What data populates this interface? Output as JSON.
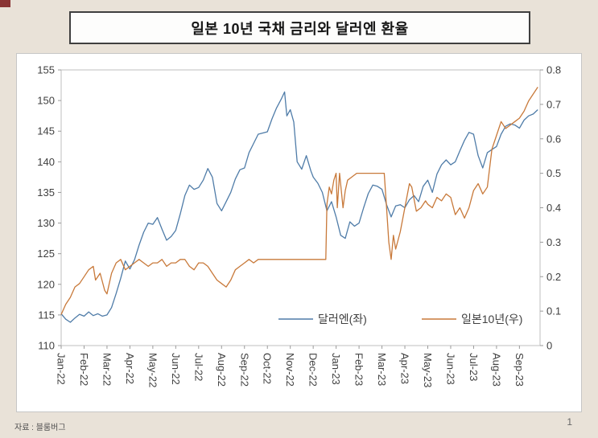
{
  "page": {
    "background_color": "#e9e2d8",
    "corner_mark_color": "#8a3434",
    "source": "자료 : 블룸버그",
    "page_number": "1"
  },
  "title": "일본 10년 국채 금리와 달러엔 환율",
  "chart_data": {
    "type": "line",
    "title": "일본 10년 국채 금리와 달러엔 환율",
    "grid": false,
    "legend_position": "inside-bottom-center",
    "x_unit": "month-index (0 = Jan-22)",
    "x_range": [
      0,
      20.9
    ],
    "x_tick_labels": [
      "Jan-22",
      "Feb-22",
      "Mar-22",
      "Apr-22",
      "May-22",
      "Jun-22",
      "Jul-22",
      "Aug-22",
      "Sep-22",
      "Oct-22",
      "Nov-22",
      "Dec-22",
      "Jan-23",
      "Feb-23",
      "Mar-23",
      "Apr-23",
      "May-23",
      "Jun-23",
      "Jul-23",
      "Aug-23",
      "Sep-23"
    ],
    "left_axis": {
      "min": 110,
      "max": 155,
      "tick_labels": [
        "110",
        "115",
        "120",
        "125",
        "130",
        "135",
        "140",
        "145",
        "150",
        "155"
      ]
    },
    "right_axis": {
      "min": 0,
      "max": 0.8,
      "tick_labels": [
        "0",
        "0.1",
        "0.2",
        "0.3",
        "0.4",
        "0.5",
        "0.6",
        "0.7",
        "0.8"
      ]
    },
    "series": [
      {
        "id": "usdjpy",
        "name": "달러엔(좌)",
        "axis": "left",
        "color": "#4f7ca8",
        "x": [
          0,
          0.2,
          0.4,
          0.6,
          0.8,
          1.0,
          1.2,
          1.4,
          1.6,
          1.8,
          2.0,
          2.2,
          2.4,
          2.6,
          2.8,
          3.0,
          3.2,
          3.4,
          3.6,
          3.8,
          4.0,
          4.2,
          4.4,
          4.6,
          4.8,
          5.0,
          5.2,
          5.4,
          5.6,
          5.8,
          6.0,
          6.2,
          6.4,
          6.6,
          6.8,
          7.0,
          7.2,
          7.4,
          7.6,
          7.8,
          8.0,
          8.2,
          8.4,
          8.6,
          8.8,
          9.0,
          9.2,
          9.4,
          9.6,
          9.75,
          9.85,
          10.0,
          10.15,
          10.3,
          10.5,
          10.7,
          10.9,
          11.0,
          11.2,
          11.4,
          11.6,
          11.8,
          12.0,
          12.2,
          12.4,
          12.6,
          12.8,
          13.0,
          13.2,
          13.4,
          13.6,
          13.8,
          14.0,
          14.2,
          14.4,
          14.6,
          14.8,
          15.0,
          15.2,
          15.4,
          15.6,
          15.8,
          16.0,
          16.2,
          16.4,
          16.6,
          16.8,
          17.0,
          17.2,
          17.4,
          17.6,
          17.8,
          18.0,
          18.2,
          18.4,
          18.6,
          18.8,
          19.0,
          19.2,
          19.4,
          19.6,
          19.8,
          20.0,
          20.2,
          20.4,
          20.6,
          20.8
        ],
        "y": [
          115.2,
          114.3,
          113.8,
          114.5,
          115.1,
          114.8,
          115.5,
          114.9,
          115.2,
          114.8,
          115.0,
          116.2,
          118.5,
          121.0,
          123.8,
          122.5,
          124.0,
          126.4,
          128.5,
          130.0,
          129.8,
          130.9,
          129.0,
          127.2,
          127.8,
          128.8,
          131.5,
          134.5,
          136.2,
          135.5,
          135.8,
          137.0,
          138.9,
          137.5,
          133.2,
          132.0,
          133.5,
          135.0,
          137.2,
          138.7,
          139.0,
          141.5,
          143.0,
          144.5,
          144.7,
          144.9,
          147.0,
          148.8,
          150.2,
          151.4,
          147.5,
          148.5,
          146.5,
          140.0,
          138.8,
          141.0,
          138.5,
          137.5,
          136.5,
          135.0,
          132.0,
          133.5,
          131.0,
          128.0,
          127.5,
          130.2,
          129.5,
          130.0,
          132.5,
          134.8,
          136.2,
          136.0,
          135.5,
          133.0,
          131.0,
          132.8,
          133.0,
          132.5,
          133.8,
          134.5,
          133.5,
          136.0,
          137.0,
          135.0,
          138.0,
          139.5,
          140.3,
          139.5,
          140.0,
          141.8,
          143.5,
          144.8,
          144.5,
          141.0,
          139.0,
          141.5,
          142.0,
          142.5,
          144.5,
          145.8,
          146.2,
          146.0,
          145.5,
          146.8,
          147.5,
          147.8,
          148.5
        ]
      },
      {
        "id": "jgb10y",
        "name": "일본10년(우)",
        "axis": "right",
        "color": "#c8793a",
        "x": [
          0,
          0.2,
          0.4,
          0.6,
          0.8,
          1.0,
          1.2,
          1.4,
          1.5,
          1.7,
          1.9,
          2.0,
          2.2,
          2.4,
          2.6,
          2.8,
          3.0,
          3.2,
          3.4,
          3.6,
          3.8,
          4.0,
          4.2,
          4.4,
          4.6,
          4.8,
          5.0,
          5.2,
          5.4,
          5.6,
          5.8,
          6.0,
          6.2,
          6.4,
          6.6,
          6.8,
          7.0,
          7.2,
          7.4,
          7.6,
          7.8,
          8.0,
          8.2,
          8.4,
          8.6,
          8.8,
          9.0,
          9.2,
          9.4,
          9.6,
          9.8,
          10.0,
          10.2,
          10.4,
          10.6,
          10.8,
          11.0,
          11.2,
          11.4,
          11.55,
          11.6,
          11.7,
          11.8,
          11.9,
          12.0,
          12.05,
          12.15,
          12.3,
          12.4,
          12.5,
          12.7,
          12.9,
          13.0,
          13.2,
          13.4,
          13.6,
          13.8,
          14.0,
          14.1,
          14.2,
          14.3,
          14.4,
          14.5,
          14.6,
          14.8,
          15.0,
          15.2,
          15.3,
          15.5,
          15.7,
          15.9,
          16.0,
          16.2,
          16.4,
          16.6,
          16.8,
          17.0,
          17.2,
          17.4,
          17.6,
          17.8,
          18.0,
          18.2,
          18.4,
          18.6,
          18.8,
          19.0,
          19.2,
          19.4,
          19.6,
          19.8,
          20.0,
          20.2,
          20.4,
          20.6,
          20.8
        ],
        "y": [
          0.09,
          0.12,
          0.14,
          0.17,
          0.18,
          0.2,
          0.22,
          0.23,
          0.19,
          0.21,
          0.16,
          0.15,
          0.21,
          0.24,
          0.25,
          0.22,
          0.23,
          0.24,
          0.25,
          0.24,
          0.23,
          0.24,
          0.24,
          0.25,
          0.23,
          0.24,
          0.24,
          0.25,
          0.25,
          0.23,
          0.22,
          0.24,
          0.24,
          0.23,
          0.21,
          0.19,
          0.18,
          0.17,
          0.19,
          0.22,
          0.23,
          0.24,
          0.25,
          0.24,
          0.25,
          0.25,
          0.25,
          0.25,
          0.25,
          0.25,
          0.25,
          0.25,
          0.25,
          0.25,
          0.25,
          0.25,
          0.25,
          0.25,
          0.25,
          0.25,
          0.41,
          0.46,
          0.44,
          0.48,
          0.5,
          0.4,
          0.5,
          0.4,
          0.45,
          0.48,
          0.49,
          0.5,
          0.5,
          0.5,
          0.5,
          0.5,
          0.5,
          0.5,
          0.5,
          0.4,
          0.3,
          0.25,
          0.32,
          0.28,
          0.33,
          0.4,
          0.47,
          0.46,
          0.39,
          0.4,
          0.42,
          0.41,
          0.4,
          0.43,
          0.42,
          0.44,
          0.43,
          0.38,
          0.4,
          0.37,
          0.4,
          0.45,
          0.47,
          0.44,
          0.46,
          0.57,
          0.61,
          0.65,
          0.63,
          0.64,
          0.65,
          0.66,
          0.68,
          0.71,
          0.73,
          0.75
        ]
      }
    ]
  }
}
